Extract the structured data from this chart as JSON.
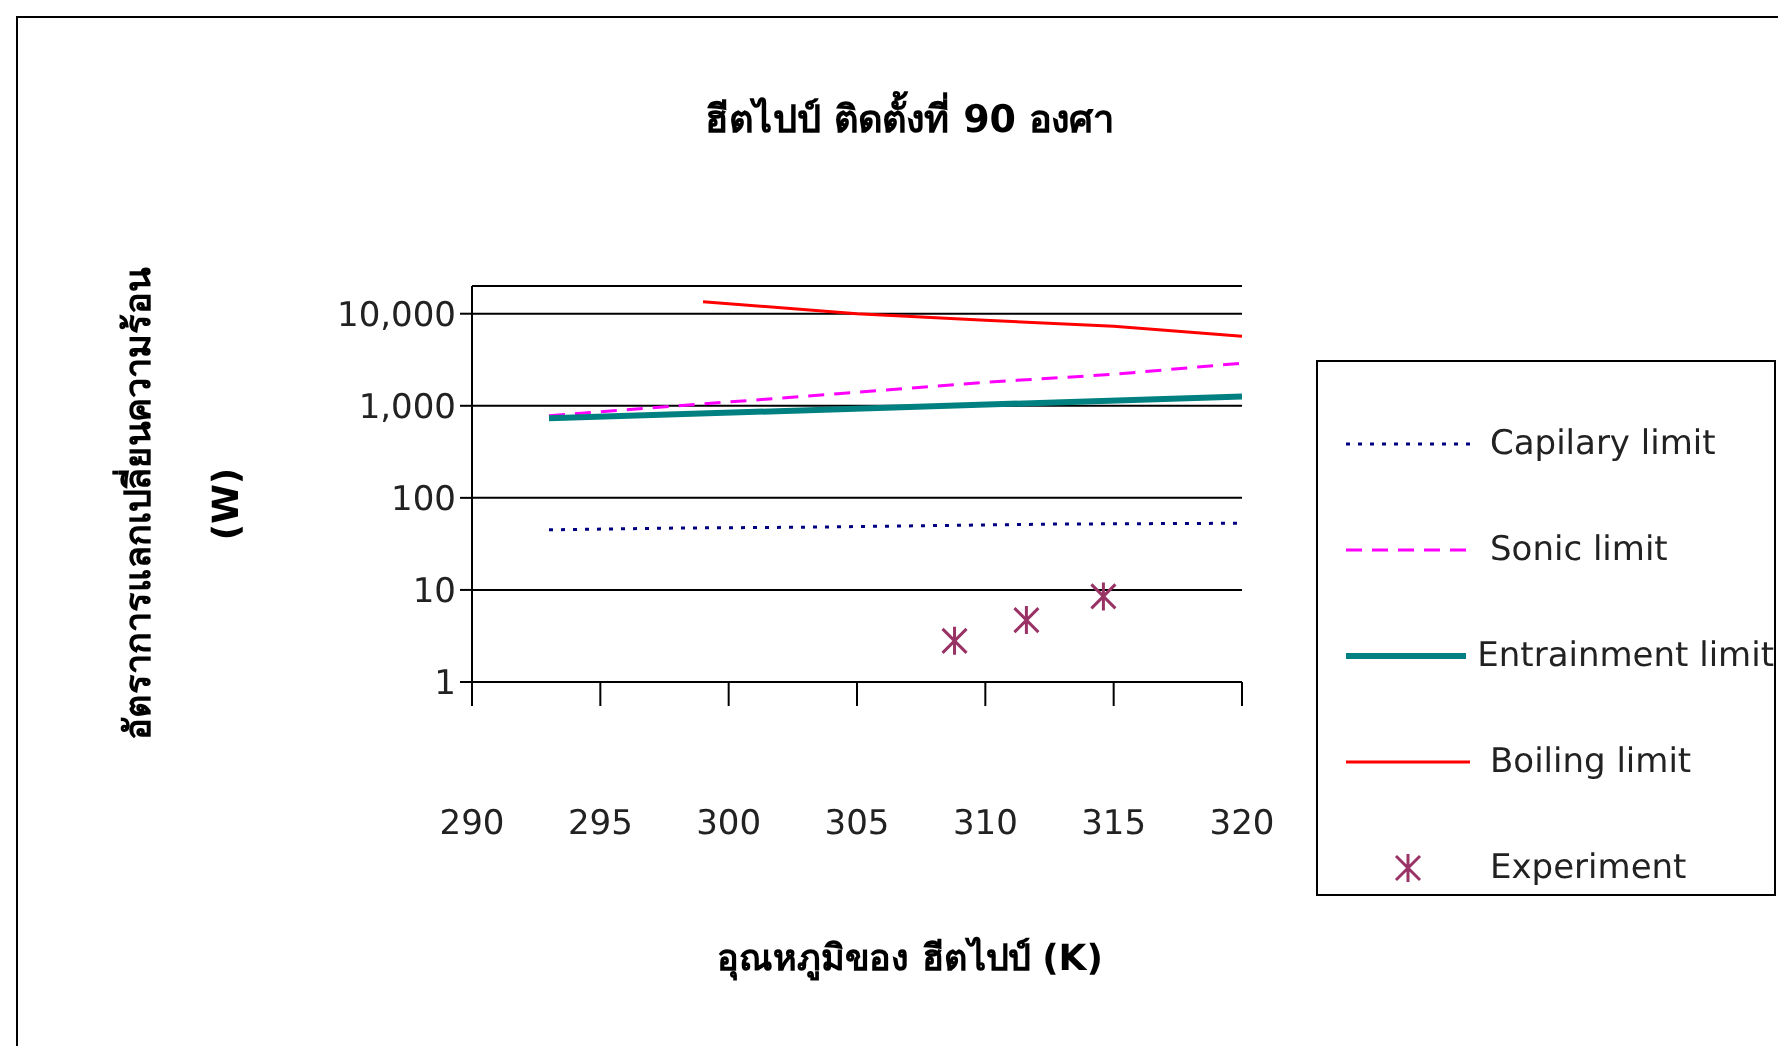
{
  "chart_data": {
    "type": "line",
    "title": "ฮีตไปป์ ติดตั้งที่ 90 องศา",
    "xlabel": "อุณหภูมิของ ฮีตไปป์ (K)",
    "ylabel": "อัตราการแลกเปลี่ยนความร้อน\n(W)",
    "log": "y",
    "grid": "y",
    "legend": "right",
    "marker": "none",
    "xlim": [
      290,
      320
    ],
    "xticks": [
      290,
      295,
      300,
      305,
      310,
      315,
      320
    ],
    "ylim": [
      1,
      20000
    ],
    "yticks": [
      {
        "value": 1,
        "label": "1"
      },
      {
        "value": 10,
        "label": "10"
      },
      {
        "value": 100,
        "label": "100"
      },
      {
        "value": 1000,
        "label": "1,000"
      },
      {
        "value": 10000,
        "label": "10,000"
      }
    ],
    "series": [
      {
        "name": "Capilary limit",
        "color": "#000080",
        "line_style": "dotted",
        "x": [
          293,
          298,
          303,
          308,
          313,
          320
        ],
        "values": [
          45,
          47,
          48,
          50,
          52,
          53
        ]
      },
      {
        "name": "Sonic limit",
        "color": "#ff00ff",
        "line_style": "dashed",
        "x": [
          293,
          300,
          305,
          310,
          315,
          320
        ],
        "values": [
          780,
          1100,
          1400,
          1800,
          2200,
          2900
        ]
      },
      {
        "name": "Entrainment limit",
        "color": "#008080",
        "line_style": "solid",
        "x": [
          293,
          320
        ],
        "values": [
          730,
          1260
        ]
      },
      {
        "name": "Boiling limit",
        "color": "#ff0000",
        "line_style": "solid",
        "x": [
          299,
          305,
          310,
          315,
          320
        ],
        "values": [
          13500,
          10000,
          8500,
          7300,
          5700
        ]
      },
      {
        "name": "Experiment",
        "type": "scatter",
        "color": "#993366",
        "marker": "cross",
        "x": [
          308.8,
          311.6,
          314.6
        ],
        "values": [
          2.8,
          4.7,
          8.5
        ]
      }
    ]
  }
}
